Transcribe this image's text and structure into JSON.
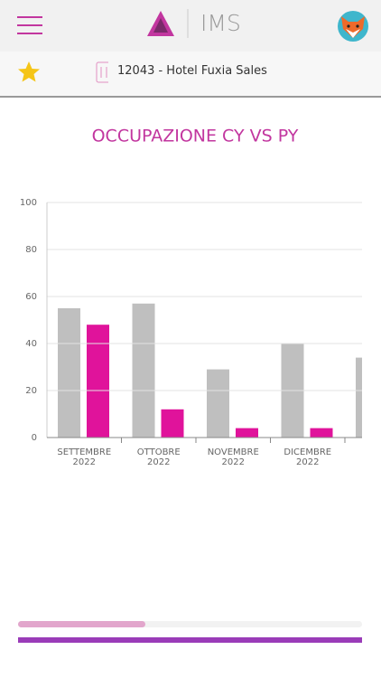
{
  "header": {
    "title": "IMS"
  },
  "subheader": {
    "hotel": "12043 - Hotel Fuxia Sales"
  },
  "chart_data": {
    "type": "bar",
    "title": "OCCUPAZIONE CY VS PY",
    "categories": [
      "SETTEMBRE 2022",
      "OTTOBRE 2022",
      "NOVEMBRE 2022",
      "DICEMBRE 2022",
      null
    ],
    "series": [
      {
        "color": "#bfbfbf",
        "values": [
          55,
          57,
          29,
          40,
          34
        ]
      },
      {
        "color": "#e0139b",
        "values": [
          48,
          12,
          4,
          4,
          null
        ]
      }
    ],
    "ylim": [
      0,
      100
    ],
    "yticks": [
      0,
      20,
      40,
      60,
      80,
      100
    ],
    "grid": true
  }
}
